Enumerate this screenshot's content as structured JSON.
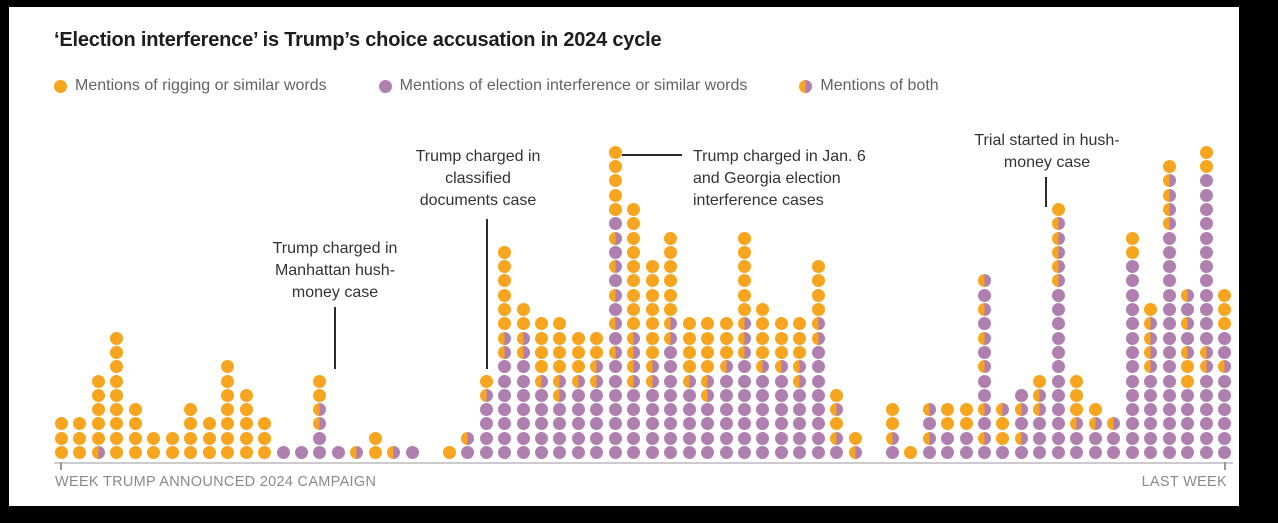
{
  "title": "‘Election interference’ is Trump’s choice accusation in 2024 cycle",
  "legend": {
    "items": [
      {
        "key": "orange",
        "label": "Mentions of rigging or similar words"
      },
      {
        "key": "purple",
        "label": "Mentions of election interference or similar words"
      },
      {
        "key": "both",
        "label": "Mentions of both"
      }
    ]
  },
  "colors": {
    "orange": "#F7A41E",
    "purple": "#AF7FAF",
    "title_text": "#1d1d1d",
    "legend_text": "#636363",
    "axis_text": "#8a8a8a",
    "annotation_text": "#333333",
    "baseline": "#cccccc",
    "background": "#ffffff",
    "frame": "#000000"
  },
  "axis": {
    "left_label": "WEEK TRUMP ANNOUNCED 2024 CAMPAIGN",
    "right_label": "LAST WEEK"
  },
  "annotations": [
    {
      "id": "manhattan",
      "lines": [
        "Trump charged in",
        "Manhattan hush-",
        "money case"
      ],
      "column_index": 14
    },
    {
      "id": "classified",
      "lines": [
        "Trump charged in",
        "classified",
        "documents case"
      ],
      "column_index": 23
    },
    {
      "id": "jan6",
      "lines": [
        "Trump charged in Jan. 6",
        "and Georgia election",
        "interference cases"
      ],
      "column_index": 30
    },
    {
      "id": "trial",
      "lines": [
        "Trial started in hush-",
        "money case"
      ],
      "column_index": 54
    }
  ],
  "chart_data": {
    "type": "bar",
    "variant": "weekly stacked dot columns, 1 column = 1 week, dots stacked bottom to top",
    "dot_encoding": {
      "o": "mention of rigging or similar words",
      "p": "mention of election interference or similar words",
      "b": "mention of both"
    },
    "x_axis": {
      "start_label": "WEEK TRUMP ANNOUNCED 2024 CAMPAIGN",
      "end_label": "LAST WEEK"
    },
    "legend_position": "top",
    "grid": false,
    "columns": [
      "ooo",
      "ooo",
      "booooo",
      "ooooooooo",
      "oooo",
      "oo",
      "oo",
      "oooo",
      "ooo",
      "ooooooo",
      "ooooo",
      "ooo",
      "p",
      "p",
      "ppbboo",
      "p",
      "b",
      "oo",
      "b",
      "p",
      "",
      "o",
      "pb",
      "ppppbo",
      "pppppppbboooooo",
      "pppppppbboo",
      "pppppboooo",
      "ppppbboooo",
      "pppppbooo",
      "pppppbboo",
      "pppppppbpbpbpbpbpooooo",
      "pppppbbbbooooooooo",
      "pppppbbooooooo",
      "ppppppppbboooooo",
      "pppppboooo",
      "ppppbboooo",
      "ppppppbooo",
      "pppppppbbboooooo",
      "ppppppboooo",
      "ppppppbooo",
      "pppppbbooo",
      "ppppppppbboooo",
      "pbobo",
      "bo",
      "",
      "pboo",
      "o",
      "pbpb",
      "ppoo",
      "ppoo",
      "pbpbppbpbpbpb",
      "poob",
      "pbpbp",
      "pppbbo",
      "ppppppppppppbbbbbo",
      "ppbooo",
      "ppbo",
      "ppb",
      "ppppppppppppppoo",
      "ppppppbbbbo",
      "ppppppppppppppppbbbbo",
      "pppppoobpbpb",
      "ppppppbbppppppppppppoo",
      "ppppppbppooo"
    ]
  }
}
